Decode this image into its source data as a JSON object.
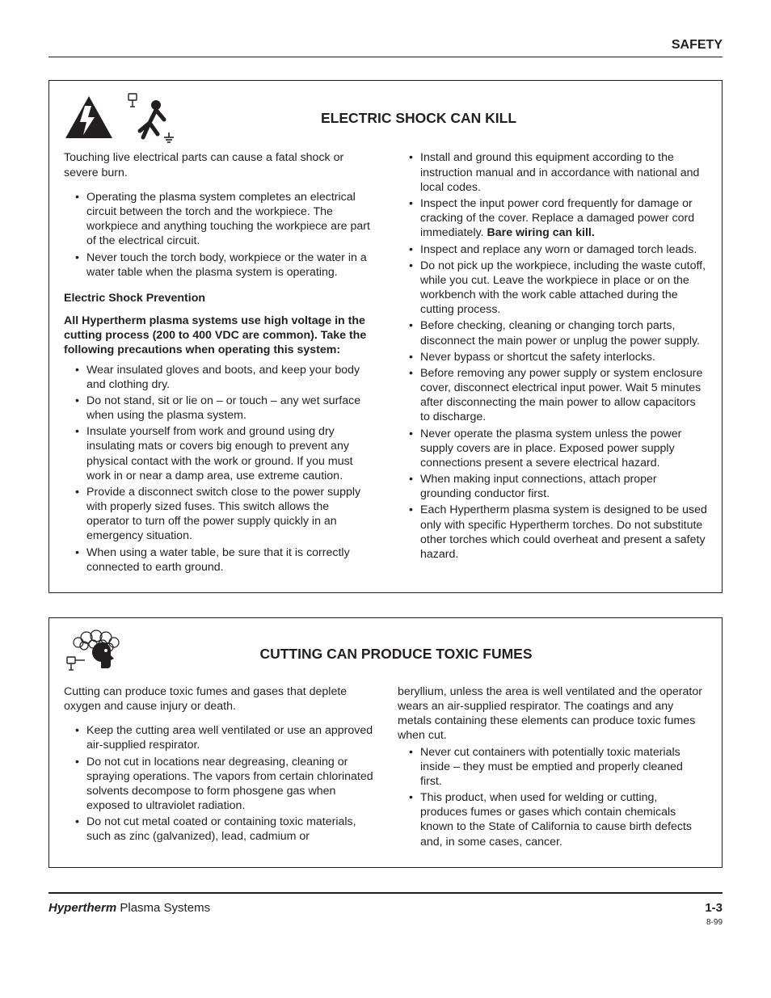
{
  "header": {
    "section": "SAFETY"
  },
  "box1": {
    "title": "ELECTRIC SHOCK CAN KILL",
    "intro": "Touching live electrical parts can cause a fatal shock or severe burn.",
    "left_list1": [
      "Operating the plasma system completes an electrical circuit between the torch and the workpiece. The workpiece and anything touching the workpiece are part of the electrical circuit.",
      "Never touch the torch body, workpiece or the water in a water table when the plasma system is operating."
    ],
    "sub_head": "Electric Shock Prevention",
    "bold_para": "All Hypertherm plasma systems use high voltage in the cutting process (200 to 400 VDC are common). Take the following precautions when operating this system:",
    "left_list2": [
      "Wear insulated gloves and boots, and keep your body and clothing dry.",
      "Do not stand, sit or lie on – or touch – any wet surface when using the plasma system.",
      "Insulate yourself from work and ground using dry insulating mats or covers big enough to prevent any physical contact with the work or ground. If you must work in or near a damp area, use extreme caution.",
      "Provide a disconnect switch close to the power supply with properly sized fuses. This switch allows the operator to turn off the power supply quickly in an emergency situation.",
      "When using a water table, be sure that it is correctly connected to earth ground."
    ],
    "right_list": [
      "Install and ground this equipment according to the instruction manual and in accordance with national and local codes.",
      "Inspect the input power cord frequently for damage or cracking of the cover. Replace a damaged power cord immediately. ",
      "Inspect and replace any worn or damaged torch leads.",
      "Do not pick up the workpiece, including the waste cutoff, while you cut. Leave the workpiece in place or on the workbench with the work cable attached during the cutting process.",
      "Before checking, cleaning or changing torch parts, disconnect the main power or unplug the power supply.",
      "Never bypass or shortcut the safety interlocks.",
      "Before removing any power supply or system enclosure cover, disconnect electrical input power. Wait 5 minutes after disconnecting the main power to allow capacitors to discharge.",
      "Never operate the plasma system unless the power supply covers are in place. Exposed power supply connections present a severe electrical hazard.",
      "When making input connections, attach proper grounding conductor first.",
      "Each Hypertherm plasma system is designed to be used only with specific Hypertherm torches. Do not substitute other torches which could overheat and present a safety hazard."
    ],
    "bare_wiring": "Bare wiring can kill."
  },
  "box2": {
    "title": "CUTTING CAN PRODUCE TOXIC FUMES",
    "intro": "Cutting can produce toxic fumes and gases that deplete oxygen and cause injury or death.",
    "left_list": [
      "Keep the cutting area well ventilated or use an approved air-supplied respirator.",
      "Do not cut in locations near degreasing, cleaning or spraying operations. The vapors from certain chlorinated solvents decompose to form phosgene gas when exposed to ultraviolet radiation.",
      "Do not cut metal coated or containing toxic materials, such as zinc (galvanized), lead, cadmium or"
    ],
    "right_cont": "beryllium, unless the area is well ventilated and the operator wears an air-supplied respirator. The coatings and any metals containing these elements can produce toxic fumes when cut.",
    "right_list": [
      "Never cut containers with potentially toxic materials inside – they must be emptied and properly cleaned first.",
      "This product, when used for welding or cutting, produces fumes or gases which contain chemicals known to the State of California to cause birth defects and, in some cases, cancer."
    ]
  },
  "footer": {
    "brand": "Hypertherm",
    "product": " Plasma Systems",
    "page": "1-3",
    "date": "8-99"
  }
}
